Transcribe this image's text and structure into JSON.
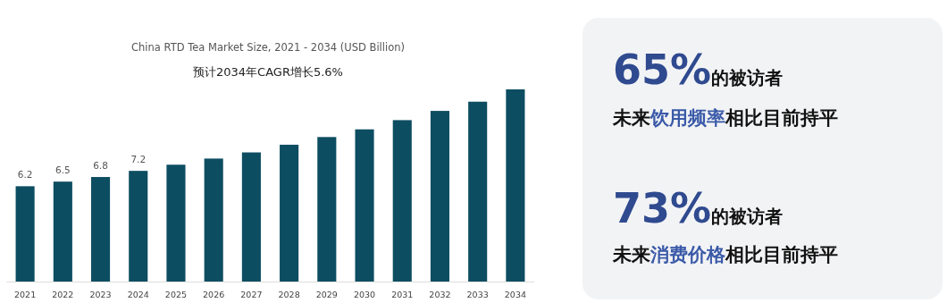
{
  "chart_data": [
    {
      "type": "bar",
      "title": "China RTD Tea Market Size, 2021 - 2034 (USD Billion)",
      "subtitle": "预计2034年CAGR增长5.6%",
      "categories": [
        "2021",
        "2022",
        "2023",
        "2024",
        "2025",
        "2026",
        "2027",
        "2028",
        "2029",
        "2030",
        "2031",
        "2032",
        "2033",
        "2034"
      ],
      "values": [
        6.2,
        6.5,
        6.8,
        7.2,
        7.6,
        8.0,
        8.4,
        8.9,
        9.4,
        9.9,
        10.5,
        11.1,
        11.7,
        12.5
      ],
      "value_labels": [
        "6.2",
        "6.5",
        "6.8",
        "7.2",
        null,
        null,
        null,
        null,
        null,
        null,
        null,
        null,
        null,
        null
      ],
      "color": "#0d4d62"
    },
    {
      "type": "other",
      "annotations": [
        "65%",
        "的被访者",
        "未来",
        "饮用频率",
        "相比目前持平",
        "73%",
        "的被访者",
        "未来",
        "消费价格",
        "相比目前持平"
      ]
    }
  ]
}
